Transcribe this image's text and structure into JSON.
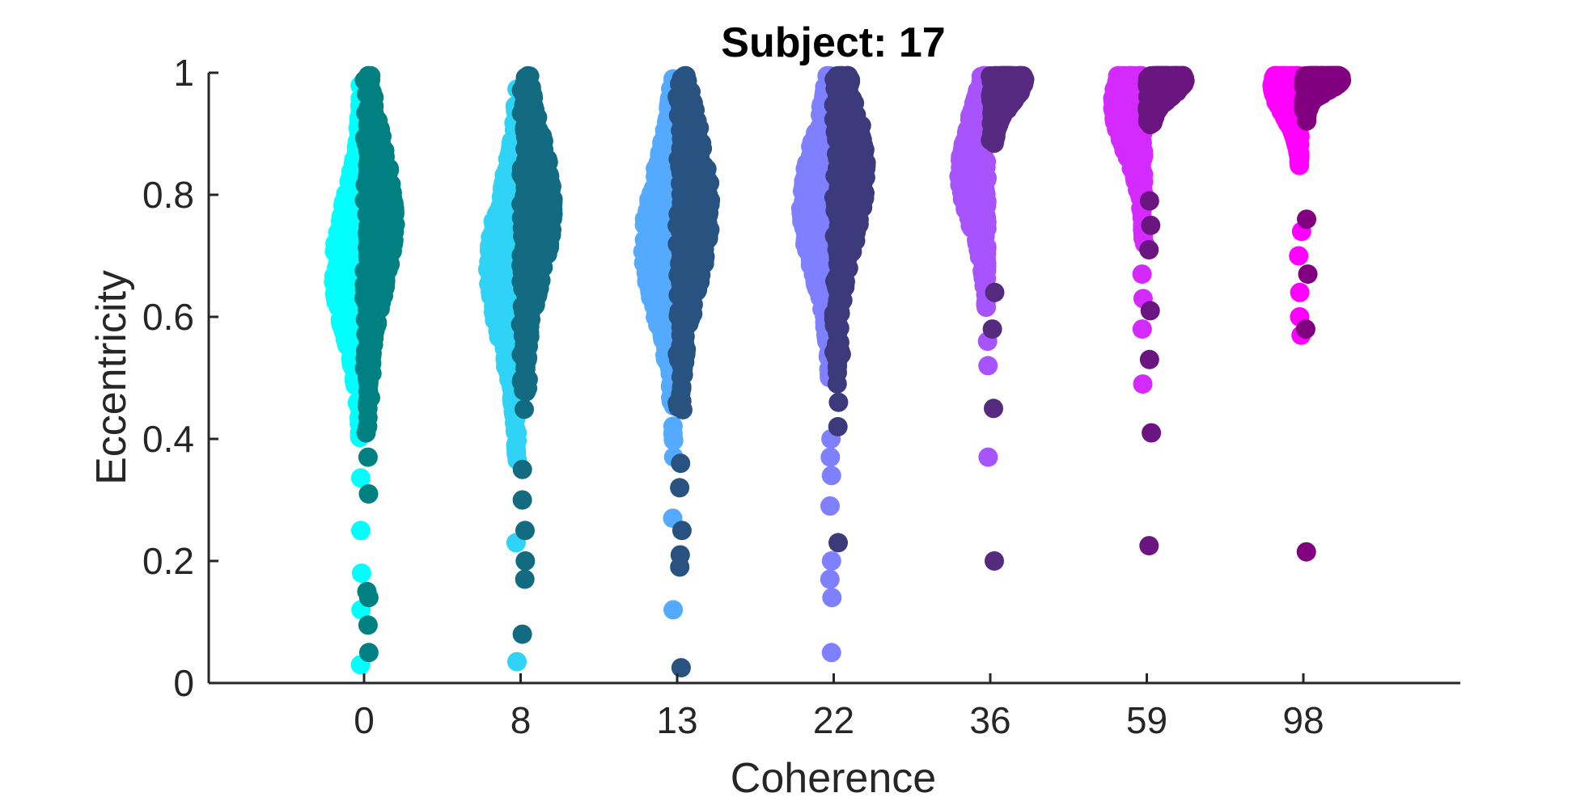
{
  "chart_data": {
    "type": "scatter",
    "subtype": "violin-swarm",
    "title": "Subject: 17",
    "xlabel": "Coherence",
    "ylabel": "Eccentricity",
    "categories": [
      "0",
      "8",
      "13",
      "22",
      "36",
      "59",
      "98"
    ],
    "yticks": [
      "0",
      "0.2",
      "0.4",
      "0.6",
      "0.8",
      "1"
    ],
    "ylim": [
      0,
      1
    ],
    "grid": false,
    "legend": "none",
    "series": [
      {
        "category": "0",
        "light_color": "#00ffff",
        "dark_color": "#008080",
        "light_mode": 0.68,
        "light_spread": 0.11,
        "light_width": 0.36,
        "dark_mode": 0.76,
        "dark_spread": 0.12,
        "dark_width": 0.36,
        "dark_outliers": [
          0.05,
          0.095,
          0.14,
          0.15,
          0.31,
          0.37,
          0.41,
          0.45
        ],
        "light_outliers": [
          0.03,
          0.12,
          0.18,
          0.25
        ]
      },
      {
        "category": "8",
        "light_color": "#2fd3f5",
        "dark_color": "#136b82",
        "light_mode": 0.68,
        "light_spread": 0.12,
        "light_width": 0.38,
        "dark_mode": 0.78,
        "dark_spread": 0.12,
        "dark_width": 0.38,
        "dark_outliers": [
          0.08,
          0.17,
          0.2,
          0.25,
          0.3,
          0.35
        ],
        "light_outliers": [
          0.035,
          0.23
        ]
      },
      {
        "category": "13",
        "light_color": "#54aaff",
        "dark_color": "#28527f",
        "light_mode": 0.72,
        "light_spread": 0.12,
        "light_width": 0.4,
        "dark_mode": 0.78,
        "dark_spread": 0.13,
        "dark_width": 0.4,
        "dark_outliers": [
          0.025,
          0.19,
          0.21,
          0.25,
          0.32,
          0.36
        ],
        "light_outliers": [
          0.12,
          0.27
        ]
      },
      {
        "category": "22",
        "light_color": "#7f80ff",
        "dark_color": "#3c3a7a",
        "light_mode": 0.78,
        "light_spread": 0.11,
        "light_width": 0.38,
        "dark_mode": 0.84,
        "dark_spread": 0.12,
        "dark_width": 0.38,
        "dark_outliers": [
          0.23,
          0.42,
          0.46
        ],
        "light_outliers": [
          0.05,
          0.14,
          0.17,
          0.2,
          0.29,
          0.34,
          0.37,
          0.4
        ]
      },
      {
        "category": "36",
        "light_color": "#a754ff",
        "dark_color": "#562a7f",
        "light_mode": 0.84,
        "light_spread": 0.09,
        "light_width": 0.36,
        "dark_mode": 0.99,
        "dark_spread": 0.04,
        "dark_width": 0.4,
        "dark_outliers": [
          0.2,
          0.45,
          0.58,
          0.64
        ],
        "light_outliers": [
          0.37,
          0.52,
          0.56,
          0.63
        ]
      },
      {
        "category": "59",
        "light_color": "#d52aff",
        "dark_color": "#6b1580",
        "light_mode": 0.95,
        "light_spread": 0.08,
        "light_width": 0.4,
        "dark_mode": 0.99,
        "dark_spread": 0.03,
        "dark_width": 0.45,
        "dark_outliers": [
          0.225,
          0.41,
          0.53,
          0.61,
          0.71,
          0.75,
          0.79
        ],
        "light_outliers": [
          0.49,
          0.58,
          0.63,
          0.67,
          0.72
        ]
      },
      {
        "category": "98",
        "light_color": "#ff00ff",
        "dark_color": "#800080",
        "light_mode": 0.98,
        "light_spread": 0.05,
        "light_width": 0.36,
        "dark_mode": 0.99,
        "dark_spread": 0.02,
        "dark_width": 0.45,
        "dark_outliers": [
          0.215,
          0.58,
          0.67,
          0.76
        ],
        "light_outliers": [
          0.57,
          0.6,
          0.64,
          0.7,
          0.74
        ]
      }
    ]
  }
}
